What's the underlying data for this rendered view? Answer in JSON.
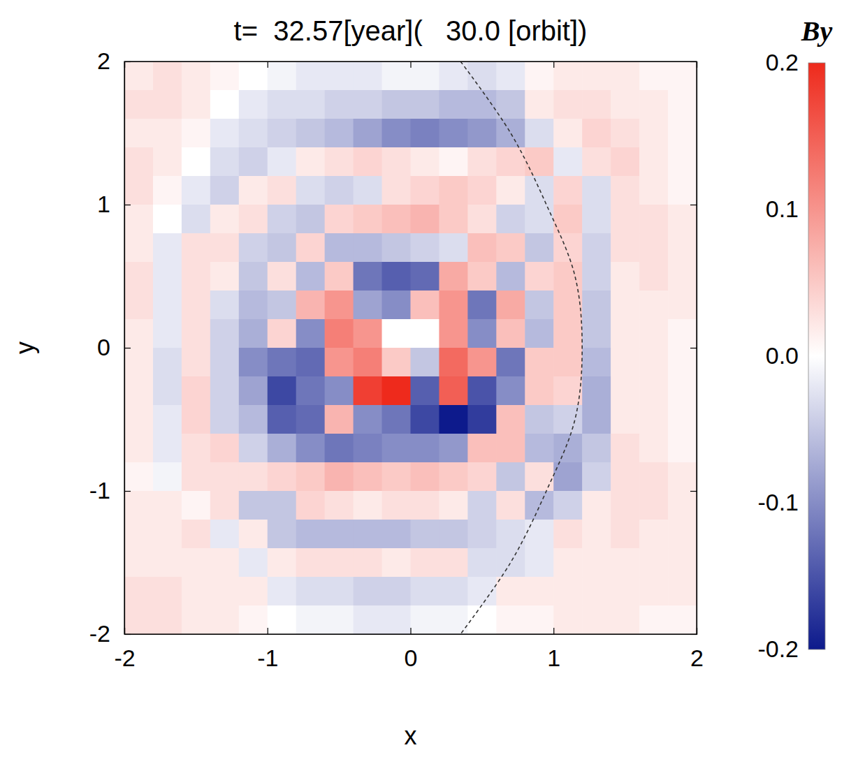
{
  "chart_data": {
    "type": "heatmap",
    "title": "t=  32.57[year](   30.0 [orbit])",
    "xlabel": "x",
    "ylabel": "y",
    "xlim": [
      -2,
      2
    ],
    "ylim": [
      -2,
      2
    ],
    "xticks": [
      -2,
      -1,
      0,
      1,
      2
    ],
    "yticks": [
      -2,
      -1,
      0,
      1,
      2
    ],
    "x": [
      -1.9,
      -1.7,
      -1.5,
      -1.3,
      -1.1,
      -0.9,
      -0.7,
      -0.5,
      -0.3,
      -0.1,
      0.1,
      0.3,
      0.5,
      0.7,
      0.9,
      1.1,
      1.3,
      1.5,
      1.7,
      1.9
    ],
    "y": [
      1.9,
      1.7,
      1.5,
      1.3,
      1.1,
      0.9,
      0.7,
      0.5,
      0.3,
      0.1,
      -0.1,
      -0.3,
      -0.5,
      -0.7,
      -0.9,
      -1.1,
      -1.3,
      -1.5,
      -1.7,
      -1.9
    ],
    "z": [
      [
        0.02,
        0.03,
        0.02,
        0.01,
        0,
        -0.01,
        -0.02,
        -0.02,
        -0.02,
        -0.01,
        -0.01,
        -0.02,
        -0.03,
        -0.02,
        0.01,
        0.02,
        0.02,
        0.02,
        0.01,
        0.01
      ],
      [
        0.03,
        0.03,
        0.02,
        0,
        -0.02,
        -0.03,
        -0.03,
        -0.04,
        -0.04,
        -0.05,
        -0.05,
        -0.06,
        -0.06,
        -0.05,
        0.02,
        0.03,
        0.03,
        0.02,
        0.02,
        0.01
      ],
      [
        0.02,
        0.02,
        0.01,
        -0.02,
        -0.03,
        -0.04,
        -0.05,
        -0.06,
        -0.08,
        -0.1,
        -0.11,
        -0.1,
        -0.09,
        -0.07,
        -0.03,
        0.02,
        0.04,
        0.03,
        0.02,
        0.01
      ],
      [
        0.03,
        0.02,
        0,
        -0.03,
        -0.04,
        -0.02,
        0.02,
        0.03,
        0.04,
        0.03,
        0.02,
        0.01,
        0.03,
        0.04,
        0.05,
        -0.02,
        0.03,
        0.04,
        0.02,
        0.01
      ],
      [
        0.03,
        0.01,
        -0.02,
        -0.04,
        0.02,
        0.03,
        -0.03,
        -0.04,
        -0.03,
        0.03,
        0.04,
        0.05,
        0.04,
        0.02,
        -0.03,
        0.04,
        -0.03,
        0.03,
        0.02,
        0.01
      ],
      [
        0.02,
        0,
        -0.03,
        0.02,
        0.03,
        -0.04,
        -0.05,
        0.04,
        0.05,
        0.06,
        0.07,
        0.05,
        0.03,
        -0.04,
        -0.03,
        0.05,
        -0.03,
        0.03,
        0.03,
        0.02
      ],
      [
        0.02,
        -0.02,
        0.03,
        0.03,
        -0.04,
        -0.05,
        0.04,
        -0.06,
        -0.06,
        -0.05,
        -0.04,
        -0.03,
        0.06,
        0.05,
        -0.05,
        0.04,
        -0.04,
        0.03,
        0.03,
        0.02
      ],
      [
        0.03,
        -0.02,
        0.03,
        0.02,
        -0.05,
        0.03,
        -0.06,
        0.05,
        -0.12,
        -0.14,
        -0.13,
        0.08,
        0.05,
        -0.06,
        0.04,
        0.05,
        -0.04,
        0.02,
        0.03,
        0.02
      ],
      [
        0.03,
        -0.02,
        0.03,
        -0.03,
        -0.06,
        -0.05,
        0.07,
        0.1,
        -0.08,
        -0.1,
        0.06,
        0.1,
        -0.12,
        0.08,
        -0.05,
        0.05,
        -0.05,
        0.02,
        0.02,
        0.02
      ],
      [
        0.02,
        -0.02,
        0.03,
        -0.04,
        -0.07,
        0.04,
        -0.1,
        0.12,
        0.1,
        0,
        0,
        0.1,
        -0.1,
        0.06,
        -0.06,
        0.05,
        -0.05,
        0.02,
        0.02,
        0.01
      ],
      [
        0.02,
        -0.03,
        0.03,
        -0.04,
        -0.1,
        -0.12,
        -0.13,
        0.1,
        0.12,
        0.05,
        -0.05,
        0.14,
        0.1,
        -0.12,
        0.05,
        0.05,
        -0.06,
        0.02,
        0.02,
        0.01
      ],
      [
        0.02,
        -0.03,
        0.04,
        -0.04,
        -0.08,
        -0.16,
        -0.12,
        -0.1,
        0.18,
        0.2,
        -0.14,
        0.15,
        -0.15,
        -0.1,
        0.05,
        0.04,
        -0.07,
        0.02,
        0.02,
        0.01
      ],
      [
        0.02,
        -0.02,
        0.04,
        -0.04,
        -0.06,
        -0.14,
        -0.13,
        0.07,
        -0.1,
        -0.12,
        -0.16,
        -0.2,
        -0.17,
        0.06,
        -0.05,
        -0.04,
        -0.07,
        0.02,
        0.02,
        0.01
      ],
      [
        0.02,
        -0.02,
        0.03,
        0.04,
        -0.04,
        -0.07,
        -0.1,
        -0.12,
        -0.11,
        -0.1,
        -0.1,
        -0.09,
        0.06,
        0.06,
        -0.06,
        -0.07,
        -0.05,
        0.03,
        0.02,
        0.01
      ],
      [
        0.01,
        -0.01,
        0.03,
        0.03,
        0.03,
        0.04,
        0.05,
        0.07,
        0.06,
        0.05,
        0.06,
        0.05,
        0.04,
        -0.05,
        0.03,
        -0.08,
        -0.04,
        0.03,
        0.03,
        0.02
      ],
      [
        0.02,
        0.02,
        0.01,
        0.03,
        -0.05,
        -0.05,
        0.04,
        0.03,
        0.02,
        0.03,
        0.03,
        0.02,
        -0.04,
        0.03,
        -0.06,
        -0.04,
        0.02,
        0.03,
        0.03,
        0.02
      ],
      [
        0.02,
        0.02,
        0.03,
        -0.02,
        0.02,
        -0.05,
        -0.06,
        -0.06,
        -0.06,
        -0.06,
        -0.05,
        -0.05,
        -0.04,
        -0.03,
        -0.02,
        0.03,
        0.02,
        0.03,
        0.02,
        0.02
      ],
      [
        0.02,
        0.02,
        0.02,
        0.02,
        -0.02,
        0.02,
        0.03,
        0.03,
        0.03,
        0.02,
        0.03,
        0.03,
        -0.03,
        -0.03,
        -0.02,
        0.02,
        0.02,
        0.02,
        0.02,
        0.02
      ],
      [
        0.03,
        0.03,
        0.02,
        0.02,
        0.02,
        -0.02,
        -0.03,
        -0.03,
        -0.04,
        -0.04,
        -0.03,
        -0.03,
        -0.02,
        0.02,
        0.02,
        0.02,
        0.02,
        0.02,
        0.02,
        0.02
      ],
      [
        0.03,
        0.03,
        0.02,
        0.02,
        0.01,
        0,
        -0.01,
        -0.01,
        -0.02,
        -0.02,
        -0.01,
        -0.01,
        0,
        0.01,
        0.01,
        0.02,
        0.02,
        0.02,
        0.01,
        0.01
      ]
    ],
    "series": [
      {
        "type": "line",
        "line_style": "dashed",
        "color": "#333333",
        "x": [
          0.35,
          0.7,
          0.95,
          1.15,
          1.2,
          1.15,
          0.95,
          0.7,
          0.35
        ],
        "y": [
          2,
          1.5,
          1,
          0.5,
          0,
          -0.5,
          -1,
          -1.5,
          -2
        ]
      }
    ],
    "colorbar": {
      "label": "By",
      "range": [
        -0.2,
        0.2
      ],
      "ticks": [
        0.2,
        0.1,
        {
          "value": 0,
          "label": "0.0"
        },
        -0.1,
        -0.2
      ],
      "colors": [
        "#0d1a8c",
        "#ffffff",
        "#ee2a1c"
      ]
    }
  }
}
